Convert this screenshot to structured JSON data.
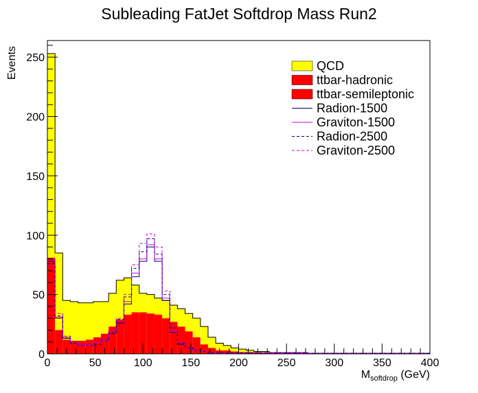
{
  "chart_data": {
    "type": "bar",
    "title": "Subleading FatJet Softdrop Mass Run2",
    "xlabel_main": "M",
    "xlabel_sub": "softdrop",
    "xlabel_unit": " (GeV)",
    "ylabel": "Events",
    "xlim": [
      0,
      400
    ],
    "ylim": [
      0,
      264
    ],
    "bin_width": 8,
    "x_ticks": [
      0,
      50,
      100,
      150,
      200,
      250,
      300,
      350,
      400
    ],
    "y_ticks": [
      0,
      50,
      100,
      150,
      200,
      250
    ],
    "legend_position": "top-right",
    "stack": [
      {
        "name": "ttbar-semileptonic",
        "color": "#ff0000",
        "style": "fill",
        "values": [
          81,
          20,
          12,
          11,
          11,
          12,
          14,
          17,
          23,
          28,
          32,
          34,
          34,
          33,
          32,
          29,
          26,
          23,
          19,
          14,
          8,
          5,
          3,
          3,
          2,
          1.5,
          1.5,
          1,
          1,
          0.5,
          0.5,
          0.5,
          0.5,
          0.5,
          0,
          0,
          0,
          0,
          0,
          0,
          0,
          0,
          0,
          0,
          0,
          0,
          0,
          0,
          0,
          0
        ]
      },
      {
        "name": "ttbar-hadronic",
        "color": "#ff0000",
        "style": "fill",
        "values": [
          0,
          0,
          0,
          0,
          0,
          0,
          0,
          0,
          0,
          1,
          1,
          1,
          1,
          1,
          1,
          1,
          1,
          0,
          0,
          0,
          0,
          0,
          0,
          0,
          0,
          0,
          0,
          0,
          0,
          0,
          0,
          0,
          0,
          0,
          0,
          0,
          0,
          0,
          0,
          0,
          0,
          0,
          0,
          0,
          0,
          0,
          0,
          0,
          0,
          0
        ]
      },
      {
        "name": "QCD",
        "color": "#ffff00",
        "style": "fill",
        "values": [
          172,
          65,
          33,
          33,
          32,
          31,
          30,
          27,
          28,
          33,
          31,
          23,
          16,
          16,
          14,
          15,
          14,
          15,
          15,
          16,
          15,
          9,
          6,
          4,
          3,
          2.5,
          1.5,
          1,
          1,
          0.5,
          0.5,
          0.5,
          0.5,
          0.5,
          0.5,
          0.5,
          0.5,
          0.5,
          0.5,
          0.5,
          0.5,
          0.5,
          0.5,
          0.5,
          0.5,
          0.5,
          0.5,
          0.5,
          0.5,
          0.5
        ]
      }
    ],
    "series": [
      {
        "name": "Radion-1500",
        "color": "#00007f",
        "style": "solid",
        "values": [
          78,
          30,
          13,
          10,
          8,
          8,
          9,
          12,
          18,
          26,
          42,
          65,
          78,
          90,
          78,
          45,
          18,
          8,
          5,
          3,
          2,
          1,
          1,
          1,
          1,
          1,
          1,
          1,
          0.5,
          0.5,
          0.5,
          0.5,
          0.5,
          0.5,
          0.5,
          0.5,
          0.5,
          0.5,
          0.5,
          0.5,
          0.5,
          0.5,
          0.5,
          0.5,
          0.5,
          0.5,
          0.5,
          0.5,
          0.5,
          0.5
        ]
      },
      {
        "name": "Graviton-1500",
        "color": "#cc00cc",
        "style": "solid",
        "values": [
          80,
          31,
          14,
          10,
          8,
          8,
          9,
          12,
          19,
          27,
          44,
          68,
          80,
          92,
          80,
          47,
          19,
          9,
          5,
          3,
          2,
          1,
          1,
          1,
          1,
          1,
          1,
          1,
          0.5,
          0.5,
          0.5,
          0.5,
          0.5,
          0.5,
          0.5,
          0.5,
          0.5,
          0.5,
          0.5,
          0.5,
          0.5,
          0.5,
          0.5,
          0.5,
          0.5,
          0.5,
          0.5,
          0.5,
          0.5,
          0.5
        ]
      },
      {
        "name": "Radion-2500",
        "color": "#00007f",
        "style": "dashed",
        "values": [
          76,
          32,
          14,
          9,
          7,
          7,
          8,
          11,
          17,
          29,
          48,
          72,
          86,
          97,
          84,
          50,
          22,
          9,
          5,
          3,
          2,
          1,
          1,
          1,
          1,
          1,
          1,
          1,
          1,
          1,
          1,
          1,
          1,
          1,
          0.5,
          0.5,
          0.5,
          0.5,
          0.5,
          0.5,
          0.5,
          0.5,
          0.5,
          0.5,
          0.5,
          0.5,
          0.5,
          0.5,
          0.5,
          0.5
        ]
      },
      {
        "name": "Graviton-2500",
        "color": "#cc00cc",
        "style": "dashed",
        "values": [
          74,
          34,
          15,
          10,
          7,
          7,
          9,
          11,
          18,
          30,
          50,
          75,
          93,
          101,
          90,
          53,
          23,
          10,
          5,
          3,
          2,
          1,
          1,
          1,
          1,
          1,
          1,
          1,
          1,
          1,
          1,
          1,
          1,
          1,
          0.5,
          0.5,
          0.5,
          0.5,
          0.5,
          0.5,
          0.5,
          0.5,
          0.5,
          0.5,
          0.5,
          0.5,
          0.5,
          0.5,
          0.5,
          0.5
        ]
      }
    ],
    "legend": [
      {
        "label": "QCD",
        "color": "#ffff00",
        "style": "fill"
      },
      {
        "label": "ttbar-hadronic",
        "color": "#ff0000",
        "style": "fill"
      },
      {
        "label": "ttbar-semileptonic",
        "color": "#ff0000",
        "style": "fill"
      },
      {
        "label": "Radion-1500",
        "color": "#00007f",
        "style": "solid"
      },
      {
        "label": "Graviton-1500",
        "color": "#cc00cc",
        "style": "solid"
      },
      {
        "label": "Radion-2500",
        "color": "#00007f",
        "style": "dashed"
      },
      {
        "label": "Graviton-2500",
        "color": "#cc00cc",
        "style": "dashed"
      }
    ]
  }
}
